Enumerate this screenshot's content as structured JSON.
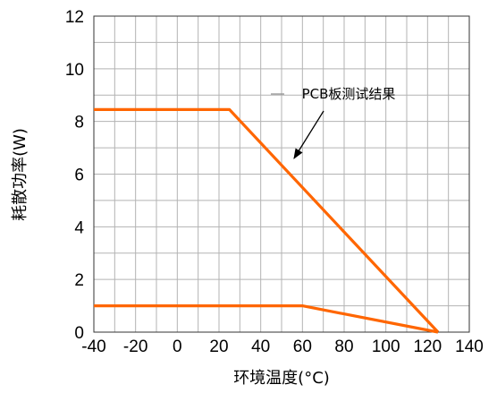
{
  "chart_data": {
    "type": "line",
    "xlabel": "环境温度(°C)",
    "ylabel": "耗散功率(W)",
    "xlim": [
      -40,
      140
    ],
    "ylim": [
      0,
      12
    ],
    "x_ticks": [
      -40,
      -20,
      0,
      20,
      40,
      60,
      80,
      100,
      120,
      140
    ],
    "y_ticks": [
      0,
      2,
      4,
      6,
      8,
      10,
      12
    ],
    "x_tick_labels": [
      "-40",
      "-20",
      "0",
      "20",
      "40",
      "60",
      "80",
      "100",
      "120",
      "140"
    ],
    "y_tick_labels": [
      "0",
      "2",
      "4",
      "6",
      "8",
      "10",
      "12"
    ],
    "x_minor_step": 10,
    "y_minor_step": 1,
    "grid": true,
    "series": [
      {
        "name": "",
        "color": "#ff6600",
        "points": [
          [
            -40,
            8.45
          ],
          [
            25,
            8.45
          ],
          [
            125,
            0
          ]
        ]
      },
      {
        "name": "",
        "color": "#ff6600",
        "points": [
          [
            -40,
            1.0
          ],
          [
            60,
            1.0
          ],
          [
            125,
            0
          ]
        ]
      }
    ],
    "annotation": {
      "text": "PCB板测试结果",
      "target": [
        56,
        6.6
      ]
    }
  }
}
